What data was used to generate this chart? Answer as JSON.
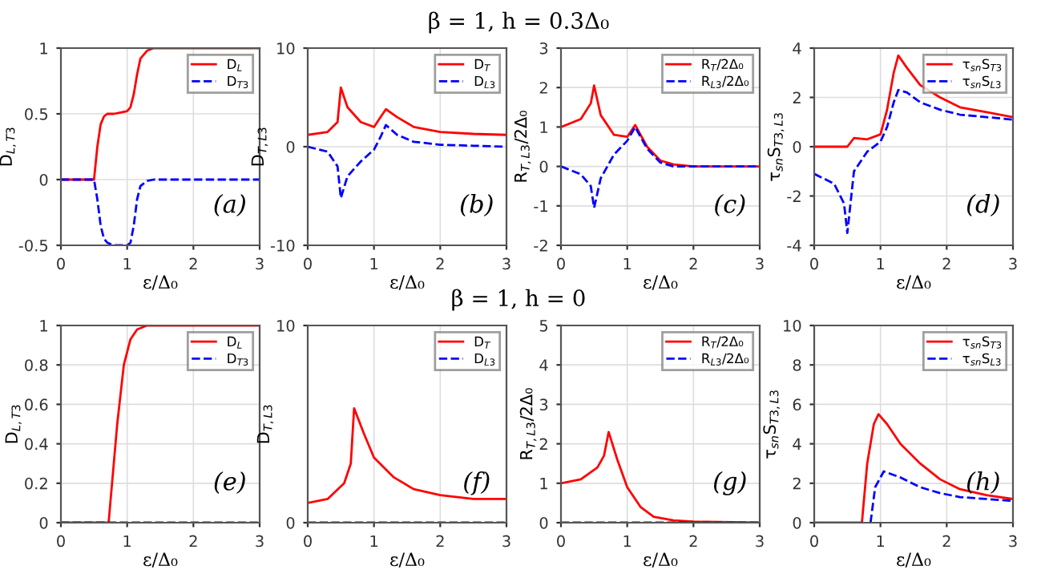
{
  "chart_data": [
    {
      "type": "other",
      "title": "β = 1, h = 0.3Δ₀"
    },
    {
      "type": "line",
      "xlabel": "ε/Δ₀",
      "ylabel": "D$_{L,T3}$",
      "xlim": [
        0,
        3
      ],
      "xticks": [
        0,
        1,
        2,
        3
      ],
      "ylim": [
        -0.5,
        1
      ],
      "yticks": [
        -0.5,
        0,
        0.5,
        1
      ],
      "grid": true,
      "legend": "top right",
      "annotations": [
        "(a)"
      ],
      "x": [
        0,
        0.5,
        0.55,
        0.6,
        0.65,
        0.7,
        0.8,
        0.9,
        1.0,
        1.05,
        1.1,
        1.15,
        1.2,
        1.3,
        1.4,
        1.6,
        2,
        2.5,
        3
      ],
      "series": [
        {
          "name": "D$_{L}$",
          "color": "#ff0000",
          "line_style": "solid",
          "values": [
            0,
            0,
            0.25,
            0.42,
            0.48,
            0.5,
            0.5,
            0.51,
            0.52,
            0.55,
            0.65,
            0.8,
            0.92,
            0.98,
            1,
            1,
            1,
            1,
            1
          ]
        },
        {
          "name": "D$_{T3}$",
          "color": "#0000ff",
          "line_style": "dashed",
          "values": [
            0,
            0,
            -0.15,
            -0.35,
            -0.45,
            -0.48,
            -0.5,
            -0.5,
            -0.5,
            -0.48,
            -0.35,
            -0.15,
            -0.05,
            -0.01,
            0,
            0,
            0,
            0,
            0
          ]
        }
      ]
    },
    {
      "type": "line",
      "xlabel": "ε/Δ₀",
      "ylabel": "D$_{T,L3}$",
      "xlim": [
        0,
        3
      ],
      "xticks": [
        0,
        1,
        2,
        3
      ],
      "ylim": [
        -10,
        10
      ],
      "yticks": [
        -10,
        0,
        10
      ],
      "grid": true,
      "legend": "top right",
      "annotations": [
        "(b)"
      ],
      "x": [
        0,
        0.3,
        0.45,
        0.5,
        0.6,
        0.8,
        1.0,
        1.1,
        1.18,
        1.35,
        1.6,
        2,
        2.5,
        3
      ],
      "series": [
        {
          "name": "D$_{T}$",
          "color": "#ff0000",
          "line_style": "solid",
          "values": [
            1.2,
            1.5,
            2.5,
            6,
            4,
            2.5,
            2,
            3,
            3.8,
            3,
            2,
            1.5,
            1.3,
            1.2
          ]
        },
        {
          "name": "D$_{L3}$",
          "color": "#0000ff",
          "line_style": "dashed",
          "values": [
            0,
            -0.5,
            -2,
            -5.2,
            -3,
            -1.5,
            -0.3,
            1,
            2.2,
            1.2,
            0.5,
            0.2,
            0.1,
            0
          ]
        }
      ]
    },
    {
      "type": "line",
      "xlabel": "ε/Δ₀",
      "ylabel": "R$_{T,L3}$/2Δ₀",
      "xlim": [
        0,
        3
      ],
      "xticks": [
        0,
        1,
        2,
        3
      ],
      "ylim": [
        -2,
        3
      ],
      "yticks": [
        -2,
        -1,
        0,
        1,
        2,
        3
      ],
      "grid": true,
      "legend": "top right",
      "annotations": [
        "(c)"
      ],
      "x": [
        0,
        0.3,
        0.45,
        0.5,
        0.6,
        0.8,
        1.0,
        1.12,
        1.3,
        1.5,
        1.7,
        2,
        3
      ],
      "series": [
        {
          "name": "R$_{T}$/2Δ₀",
          "color": "#ff0000",
          "line_style": "solid",
          "values": [
            1,
            1.2,
            1.6,
            2.05,
            1.3,
            0.8,
            0.75,
            1.05,
            0.5,
            0.15,
            0.05,
            0,
            0
          ]
        },
        {
          "name": "R$_{L3}$/2Δ₀",
          "color": "#0000ff",
          "line_style": "dashed",
          "values": [
            0,
            -0.2,
            -0.5,
            -1.05,
            -0.3,
            0.3,
            0.65,
            1.0,
            0.45,
            0.1,
            0,
            0,
            0
          ]
        }
      ]
    },
    {
      "type": "line",
      "xlabel": "ε/Δ₀",
      "ylabel": "τ$_{sn}$S$_{T3,L3}$",
      "xlim": [
        0,
        3
      ],
      "xticks": [
        0,
        1,
        2,
        3
      ],
      "ylim": [
        -4,
        4
      ],
      "yticks": [
        -4,
        -2,
        0,
        2,
        4
      ],
      "grid": true,
      "legend": "top right",
      "annotations": [
        "(d)"
      ],
      "x": [
        0,
        0.3,
        0.45,
        0.5,
        0.6,
        0.8,
        1.0,
        1.1,
        1.2,
        1.27,
        1.4,
        1.6,
        1.9,
        2.2,
        2.6,
        3
      ],
      "series": [
        {
          "name": "τ$_{sn}$S$_{T3}$",
          "color": "#ff0000",
          "line_style": "solid",
          "values": [
            0,
            0,
            0,
            0,
            0.35,
            0.3,
            0.5,
            1.5,
            3,
            3.7,
            3.2,
            2.5,
            2,
            1.6,
            1.4,
            1.2
          ]
        },
        {
          "name": "τ$_{sn}$S$_{L3}$",
          "color": "#0000ff",
          "line_style": "dashed",
          "values": [
            -1.1,
            -1.5,
            -2.3,
            -3.5,
            -1,
            -0.2,
            0.2,
            0.8,
            1.8,
            2.3,
            2.2,
            1.8,
            1.5,
            1.3,
            1.2,
            1.1
          ]
        }
      ]
    },
    {
      "type": "other",
      "title": "β = 1, h = 0"
    },
    {
      "type": "line",
      "xlabel": "ε/Δ₀",
      "ylabel": "D$_{L,T3}$",
      "xlim": [
        0,
        3
      ],
      "xticks": [
        0,
        1,
        2,
        3
      ],
      "ylim": [
        0,
        1
      ],
      "yticks": [
        0,
        0.2,
        0.4,
        0.6,
        0.8,
        1
      ],
      "grid": true,
      "legend": "top right",
      "annotations": [
        "(e)"
      ],
      "x": [
        0,
        0.72,
        0.85,
        0.95,
        1.05,
        1.15,
        1.3,
        2,
        3
      ],
      "series": [
        {
          "name": "D$_{L}$",
          "color": "#ff0000",
          "line_style": "solid",
          "values": [
            0,
            0,
            0.5,
            0.8,
            0.93,
            0.98,
            1,
            1,
            1
          ]
        },
        {
          "name": "D$_{T3}$",
          "color": "#0000ff",
          "line_style": "dashed",
          "values": [
            0,
            0,
            0,
            0,
            0,
            0,
            0,
            0,
            0
          ]
        }
      ]
    },
    {
      "type": "line",
      "xlabel": "ε/Δ₀",
      "ylabel": "D$_{T,L3}$",
      "xlim": [
        0,
        3
      ],
      "xticks": [
        0,
        1,
        2,
        3
      ],
      "ylim": [
        0,
        10
      ],
      "yticks": [
        0,
        10
      ],
      "grid": true,
      "legend": "top right",
      "annotations": [
        "(f)"
      ],
      "x": [
        0,
        0.3,
        0.55,
        0.65,
        0.7,
        0.85,
        1,
        1.3,
        1.6,
        2,
        2.5,
        3
      ],
      "series": [
        {
          "name": "D$_{T}$",
          "color": "#ff0000",
          "line_style": "solid",
          "values": [
            1,
            1.2,
            2,
            3,
            5.8,
            4.5,
            3.3,
            2.3,
            1.7,
            1.4,
            1.2,
            1.2
          ]
        },
        {
          "name": "D$_{L3}$",
          "color": "#0000ff",
          "line_style": "dashed",
          "values": [
            0,
            0,
            0,
            0,
            0,
            0,
            0,
            0,
            0,
            0,
            0,
            0
          ]
        }
      ]
    },
    {
      "type": "line",
      "xlabel": "ε/Δ₀",
      "ylabel": "R$_{T,L3}$/2Δ₀",
      "xlim": [
        0,
        3
      ],
      "xticks": [
        0,
        1,
        2,
        3
      ],
      "ylim": [
        0,
        5
      ],
      "yticks": [
        0,
        1,
        2,
        3,
        4,
        5
      ],
      "grid": true,
      "legend": "top right",
      "annotations": [
        "(g)"
      ],
      "x": [
        0,
        0.3,
        0.55,
        0.65,
        0.72,
        0.85,
        1.0,
        1.2,
        1.4,
        1.7,
        2,
        3
      ],
      "series": [
        {
          "name": "R$_{T}$/2Δ₀",
          "color": "#ff0000",
          "line_style": "solid",
          "values": [
            1,
            1.1,
            1.4,
            1.7,
            2.3,
            1.6,
            0.9,
            0.4,
            0.15,
            0.06,
            0.03,
            0
          ]
        },
        {
          "name": "R$_{L3}$/2Δ₀",
          "color": "#0000ff",
          "line_style": "dashed",
          "values": [
            0,
            0,
            0,
            0,
            0,
            0,
            0,
            0,
            0,
            0,
            0,
            0
          ]
        }
      ]
    },
    {
      "type": "line",
      "xlabel": "ε/Δ₀",
      "ylabel": "τ$_{sn}$S$_{T3,L3}$",
      "xlim": [
        0,
        3
      ],
      "xticks": [
        0,
        1,
        2,
        3
      ],
      "ylim": [
        0,
        10
      ],
      "yticks": [
        0,
        2,
        4,
        6,
        8,
        10
      ],
      "grid": true,
      "legend": "top right",
      "annotations": [
        "(h)"
      ],
      "series": [
        {
          "name": "τ$_{sn}$S$_{T3}$",
          "color": "#ff0000",
          "line_style": "solid",
          "x": [
            0,
            0.72,
            0.8,
            0.9,
            0.97,
            1.1,
            1.3,
            1.6,
            1.9,
            2.2,
            2.6,
            3
          ],
          "values": [
            0,
            0,
            3,
            5,
            5.5,
            5,
            4,
            3,
            2.2,
            1.7,
            1.4,
            1.2
          ]
        },
        {
          "name": "τ$_{sn}$S$_{L3}$",
          "color": "#0000ff",
          "line_style": "dashed",
          "x": [
            0.85,
            0.92,
            1.05,
            1.3,
            1.6,
            1.9,
            2.2,
            2.6,
            3
          ],
          "values": [
            0,
            1.8,
            2.6,
            2.3,
            1.8,
            1.5,
            1.3,
            1.2,
            1.1
          ]
        }
      ]
    }
  ]
}
